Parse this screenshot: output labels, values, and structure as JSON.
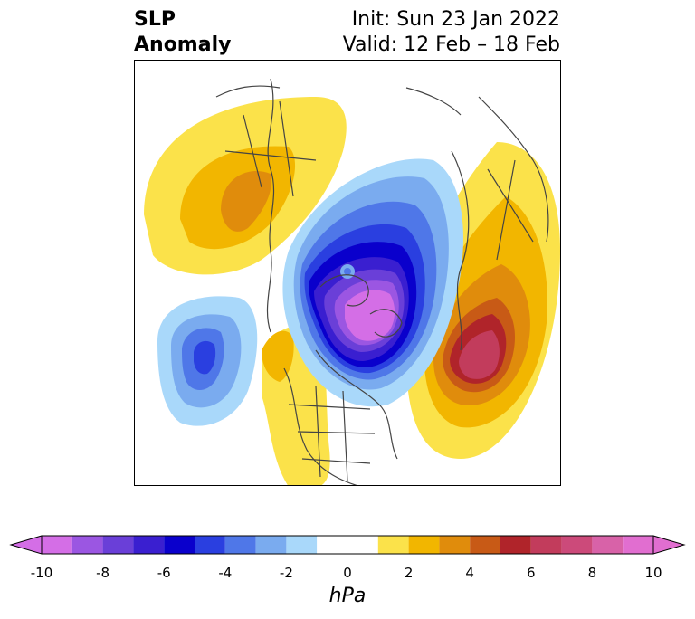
{
  "title": {
    "left_line1": "SLP",
    "left_line2": "Anomaly",
    "init": "Init: Sun 23 Jan 2022",
    "valid": "Valid: 12 Feb – 18 Feb"
  },
  "colorbar": {
    "units": "hPa",
    "ticks": [
      "-10",
      "-8",
      "-6",
      "-4",
      "-2",
      "0",
      "2",
      "4",
      "6",
      "8",
      "10"
    ],
    "tick_values": [
      -10,
      -8,
      -6,
      -4,
      -2,
      0,
      2,
      4,
      6,
      8,
      10
    ],
    "levels": [
      -10,
      -9,
      -8,
      -7,
      -6,
      -5,
      -4,
      -3,
      -2,
      -1,
      1,
      2,
      3,
      4,
      5,
      6,
      7,
      8,
      9,
      10
    ],
    "colors": [
      "#d46ee6",
      "#9b56e2",
      "#6a3fd8",
      "#3a1fd0",
      "#0a00cc",
      "#2a3fe0",
      "#4f77e8",
      "#7aabef",
      "#a9d8fa",
      "#ffffff",
      "#fbe24a",
      "#f2b600",
      "#e08c0c",
      "#c85a16",
      "#b0242a",
      "#c23c5c",
      "#cc4a7a",
      "#d862a8",
      "#e16ed0"
    ],
    "extend": "both"
  },
  "map": {
    "projection": "north-polar-stereographic",
    "field": "SLP anomaly",
    "features": {
      "negative_center_arctic": "-10",
      "negative_center_north_pacific": "-6",
      "positive_center_north_atlantic": "+7",
      "positive_ridge_west_us": "+3",
      "positive_ridge_siberia": "+3"
    }
  }
}
